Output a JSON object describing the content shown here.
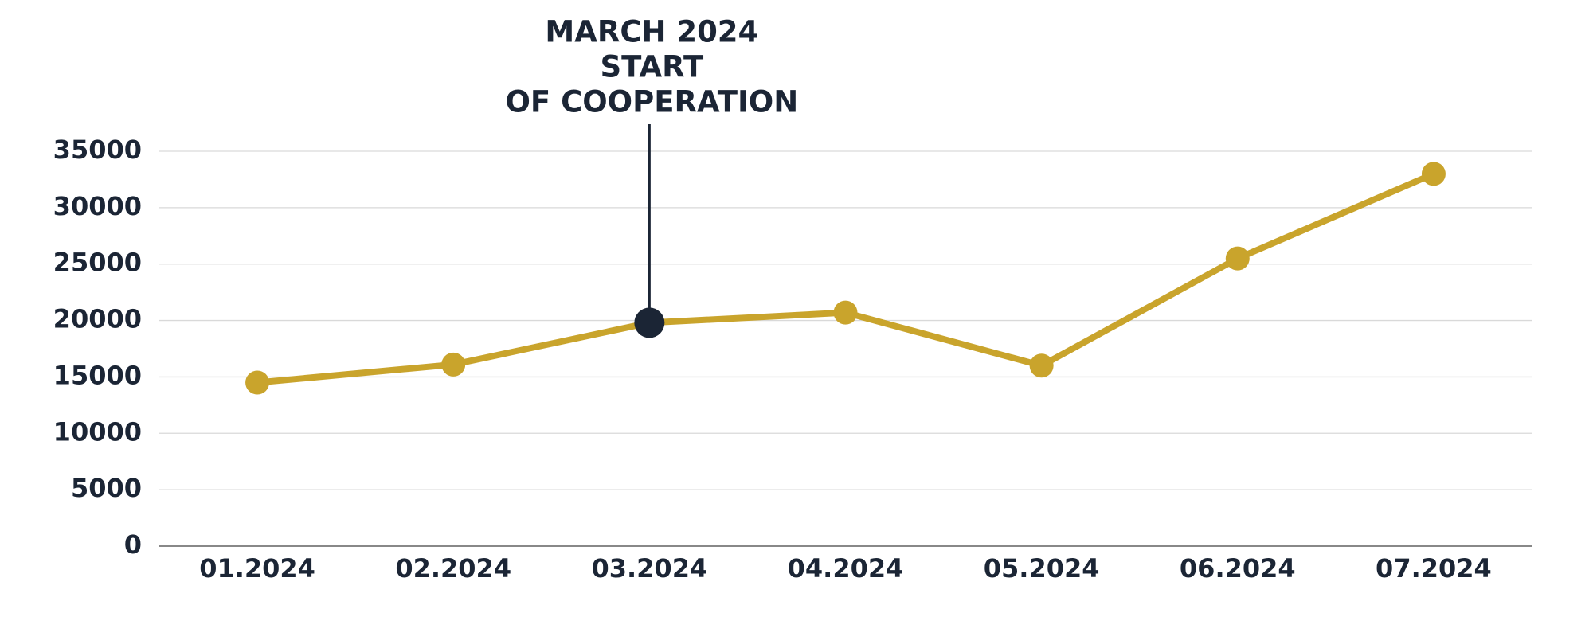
{
  "chart_data": {
    "type": "line",
    "categories": [
      "01.2024",
      "02.2024",
      "03.2024",
      "04.2024",
      "05.2024",
      "06.2024",
      "07.2024"
    ],
    "values": [
      14500,
      16100,
      19800,
      20700,
      16000,
      25500,
      33000
    ],
    "color": "#c9a42c",
    "ylim": [
      0,
      35000
    ],
    "yticks": [
      0,
      5000,
      10000,
      15000,
      20000,
      25000,
      30000,
      35000
    ],
    "grid": true,
    "annotation": {
      "x": "03.2024",
      "text": [
        "MARCH 2024",
        "START",
        "OF COOPERATION"
      ],
      "color": "#1b2535"
    }
  }
}
